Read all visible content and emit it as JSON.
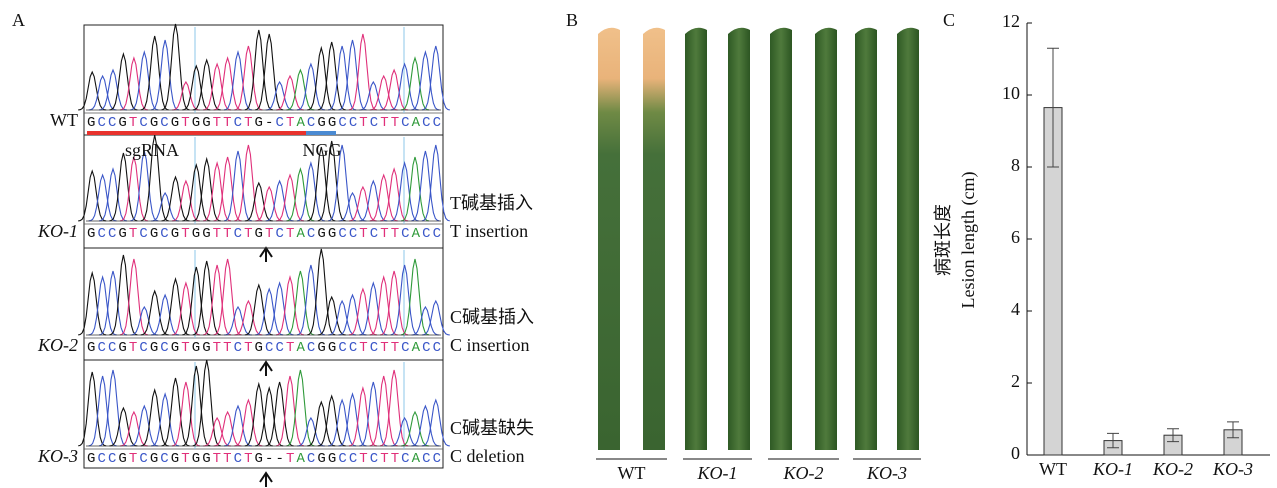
{
  "panel_letters": [
    "A",
    "B",
    "C"
  ],
  "panel_a": {
    "samples": [
      {
        "label": "WT",
        "sequence": "GCCGTCGCGTGGTTCTG-CTACGGCCTCTTCACC"
      },
      {
        "label": "KO-1",
        "sequence": "GCCGTCGCGTGGTTCTGTCTACGGCCTCTTCACC",
        "mutation_cn": "T碱基插入",
        "mutation_en": "T insertion"
      },
      {
        "label": "KO-2",
        "sequence": "GCCGTCGCGTGGTTCTGCCTACGGCCTCTTCACC",
        "mutation_cn": "C碱基插入",
        "mutation_en": "C insertion"
      },
      {
        "label": "KO-3",
        "sequence": "GCCGTCGCGTGGTTCTG--TACGGCCTCTTCACC",
        "mutation_cn": "C碱基缺失",
        "mutation_en": "C deletion"
      }
    ],
    "sgrna_label": "sgRNA",
    "pam_label": "NGG"
  },
  "panel_b": {
    "labels": [
      "WT",
      "KO-1",
      "KO-2",
      "KO-3"
    ]
  },
  "chart_data": {
    "type": "bar",
    "categories": [
      "WT",
      "KO-1",
      "KO-2",
      "KO-3"
    ],
    "values": [
      9.65,
      0.4,
      0.55,
      0.7
    ],
    "errors": [
      1.65,
      0.2,
      0.18,
      0.22
    ],
    "color": "#d4d4d4",
    "y_label_cn": "病斑长度",
    "y_label": "Lesion length (cm)",
    "ylim": [
      0,
      12
    ],
    "yticks": [
      0,
      2,
      4,
      6,
      8,
      10,
      12
    ]
  }
}
